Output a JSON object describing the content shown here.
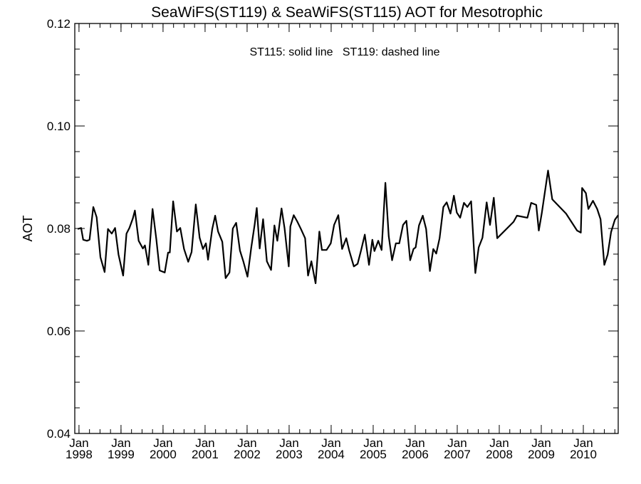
{
  "chart_data": {
    "type": "line",
    "title": "SeaWiFS(ST119) & SeaWiFS(ST115)  AOT for Mesotrophic",
    "annotation": "ST115: solid line   ST119: dashed line",
    "xlabel": "",
    "ylabel": "AOT",
    "xlim": [
      1997.9,
      2010.83
    ],
    "ylim": [
      0.04,
      0.12
    ],
    "grid": false,
    "y_ticks": [
      {
        "value": 0.04,
        "label": "0.04"
      },
      {
        "value": 0.06,
        "label": "0.06"
      },
      {
        "value": 0.08,
        "label": "0.08"
      },
      {
        "value": 0.1,
        "label": "0.10"
      },
      {
        "value": 0.12,
        "label": "0.12"
      }
    ],
    "y_minor_step": 0.005,
    "x_ticks": [
      {
        "value": 1998,
        "month": "Jan",
        "year": "1998"
      },
      {
        "value": 1999,
        "month": "Jan",
        "year": "1999"
      },
      {
        "value": 2000,
        "month": "Jan",
        "year": "2000"
      },
      {
        "value": 2001,
        "month": "Jan",
        "year": "2001"
      },
      {
        "value": 2002,
        "month": "Jan",
        "year": "2002"
      },
      {
        "value": 2003,
        "month": "Jan",
        "year": "2003"
      },
      {
        "value": 2004,
        "month": "Jan",
        "year": "2004"
      },
      {
        "value": 2005,
        "month": "Jan",
        "year": "2005"
      },
      {
        "value": 2006,
        "month": "Jan",
        "year": "2006"
      },
      {
        "value": 2007,
        "month": "Jan",
        "year": "2007"
      },
      {
        "value": 2008,
        "month": "Jan",
        "year": "2008"
      },
      {
        "value": 2009,
        "month": "Jan",
        "year": "2009"
      },
      {
        "value": 2010,
        "month": "Jan",
        "year": "2010"
      }
    ],
    "x_minor_step": 0.25,
    "series": [
      {
        "name": "ST115",
        "style": "solid",
        "color": "#000000",
        "points": [
          [
            1997.97,
            0.0799
          ],
          [
            1998.05,
            0.0801
          ],
          [
            1998.1,
            0.0778
          ],
          [
            1998.19,
            0.0776
          ],
          [
            1998.25,
            0.0778
          ],
          [
            1998.34,
            0.0842
          ],
          [
            1998.42,
            0.0822
          ],
          [
            1998.51,
            0.0744
          ],
          [
            1998.61,
            0.0715
          ],
          [
            1998.69,
            0.0799
          ],
          [
            1998.78,
            0.079
          ],
          [
            1998.86,
            0.0801
          ],
          [
            1998.94,
            0.0749
          ],
          [
            1999.05,
            0.0708
          ],
          [
            1999.13,
            0.079
          ],
          [
            1999.2,
            0.0801
          ],
          [
            1999.28,
            0.0819
          ],
          [
            1999.33,
            0.0835
          ],
          [
            1999.42,
            0.0776
          ],
          [
            1999.52,
            0.0761
          ],
          [
            1999.57,
            0.0767
          ],
          [
            1999.65,
            0.0729
          ],
          [
            1999.75,
            0.0838
          ],
          [
            1999.84,
            0.0779
          ],
          [
            1999.92,
            0.0718
          ],
          [
            2000.04,
            0.0714
          ],
          [
            2000.12,
            0.0753
          ],
          [
            2000.16,
            0.0753
          ],
          [
            2000.24,
            0.0853
          ],
          [
            2000.33,
            0.0794
          ],
          [
            2000.41,
            0.0801
          ],
          [
            2000.5,
            0.076
          ],
          [
            2000.6,
            0.0735
          ],
          [
            2000.68,
            0.0754
          ],
          [
            2000.78,
            0.0847
          ],
          [
            2000.87,
            0.0782
          ],
          [
            2000.95,
            0.076
          ],
          [
            2001.02,
            0.0771
          ],
          [
            2001.07,
            0.0739
          ],
          [
            2001.17,
            0.0799
          ],
          [
            2001.24,
            0.0825
          ],
          [
            2001.31,
            0.0794
          ],
          [
            2001.41,
            0.0774
          ],
          [
            2001.49,
            0.0703
          ],
          [
            2001.58,
            0.0714
          ],
          [
            2001.66,
            0.08
          ],
          [
            2001.74,
            0.0811
          ],
          [
            2001.83,
            0.0757
          ],
          [
            2001.91,
            0.0736
          ],
          [
            2002.01,
            0.0706
          ],
          [
            2002.1,
            0.0763
          ],
          [
            2002.18,
            0.0808
          ],
          [
            2002.23,
            0.084
          ],
          [
            2002.3,
            0.0761
          ],
          [
            2002.38,
            0.0818
          ],
          [
            2002.47,
            0.0736
          ],
          [
            2002.57,
            0.0719
          ],
          [
            2002.65,
            0.0806
          ],
          [
            2002.72,
            0.0776
          ],
          [
            2002.82,
            0.0839
          ],
          [
            2002.89,
            0.0801
          ],
          [
            2002.99,
            0.0726
          ],
          [
            2003.03,
            0.0804
          ],
          [
            2003.11,
            0.0826
          ],
          [
            2003.19,
            0.0814
          ],
          [
            2003.28,
            0.0799
          ],
          [
            2003.38,
            0.0781
          ],
          [
            2003.45,
            0.0708
          ],
          [
            2003.53,
            0.0736
          ],
          [
            2003.63,
            0.0693
          ],
          [
            2003.72,
            0.0794
          ],
          [
            2003.78,
            0.0758
          ],
          [
            2003.89,
            0.0758
          ],
          [
            2003.99,
            0.0771
          ],
          [
            2004.07,
            0.0807
          ],
          [
            2004.17,
            0.0826
          ],
          [
            2004.26,
            0.076
          ],
          [
            2004.36,
            0.0781
          ],
          [
            2004.43,
            0.0757
          ],
          [
            2004.54,
            0.0726
          ],
          [
            2004.63,
            0.0731
          ],
          [
            2004.71,
            0.0757
          ],
          [
            2004.8,
            0.0788
          ],
          [
            2004.9,
            0.0729
          ],
          [
            2004.98,
            0.0778
          ],
          [
            2005.03,
            0.0756
          ],
          [
            2005.12,
            0.0776
          ],
          [
            2005.2,
            0.0758
          ],
          [
            2005.29,
            0.0889
          ],
          [
            2005.37,
            0.0785
          ],
          [
            2005.45,
            0.0738
          ],
          [
            2005.54,
            0.0771
          ],
          [
            2005.62,
            0.0771
          ],
          [
            2005.71,
            0.0807
          ],
          [
            2005.79,
            0.0815
          ],
          [
            2005.88,
            0.0738
          ],
          [
            2005.96,
            0.076
          ],
          [
            2006.01,
            0.0763
          ],
          [
            2006.09,
            0.0806
          ],
          [
            2006.18,
            0.0825
          ],
          [
            2006.26,
            0.0799
          ],
          [
            2006.35,
            0.0717
          ],
          [
            2006.43,
            0.076
          ],
          [
            2006.5,
            0.0751
          ],
          [
            2006.58,
            0.0781
          ],
          [
            2006.67,
            0.0842
          ],
          [
            2006.75,
            0.0851
          ],
          [
            2006.84,
            0.0829
          ],
          [
            2006.92,
            0.0864
          ],
          [
            2006.99,
            0.0831
          ],
          [
            2007.07,
            0.0821
          ],
          [
            2007.16,
            0.085
          ],
          [
            2007.24,
            0.0842
          ],
          [
            2007.33,
            0.0853
          ],
          [
            2007.43,
            0.0713
          ],
          [
            2007.51,
            0.0763
          ],
          [
            2007.6,
            0.0782
          ],
          [
            2007.7,
            0.0851
          ],
          [
            2007.78,
            0.0807
          ],
          [
            2007.87,
            0.086
          ],
          [
            2007.95,
            0.0781
          ],
          [
            2008.34,
            0.0813
          ],
          [
            2008.42,
            0.0825
          ],
          [
            2008.67,
            0.0821
          ],
          [
            2008.76,
            0.085
          ],
          [
            2008.88,
            0.0846
          ],
          [
            2008.94,
            0.0796
          ],
          [
            2009.01,
            0.0829
          ],
          [
            2009.16,
            0.0913
          ],
          [
            2009.26,
            0.0857
          ],
          [
            2009.59,
            0.0829
          ],
          [
            2009.85,
            0.0796
          ],
          [
            2009.94,
            0.0792
          ],
          [
            2009.97,
            0.0879
          ],
          [
            2010.06,
            0.0869
          ],
          [
            2010.12,
            0.0838
          ],
          [
            2010.23,
            0.0854
          ],
          [
            2010.33,
            0.0838
          ],
          [
            2010.41,
            0.0818
          ],
          [
            2010.5,
            0.0729
          ],
          [
            2010.58,
            0.0749
          ],
          [
            2010.66,
            0.0793
          ],
          [
            2010.75,
            0.0817
          ],
          [
            2010.83,
            0.0826
          ]
        ]
      }
    ]
  }
}
